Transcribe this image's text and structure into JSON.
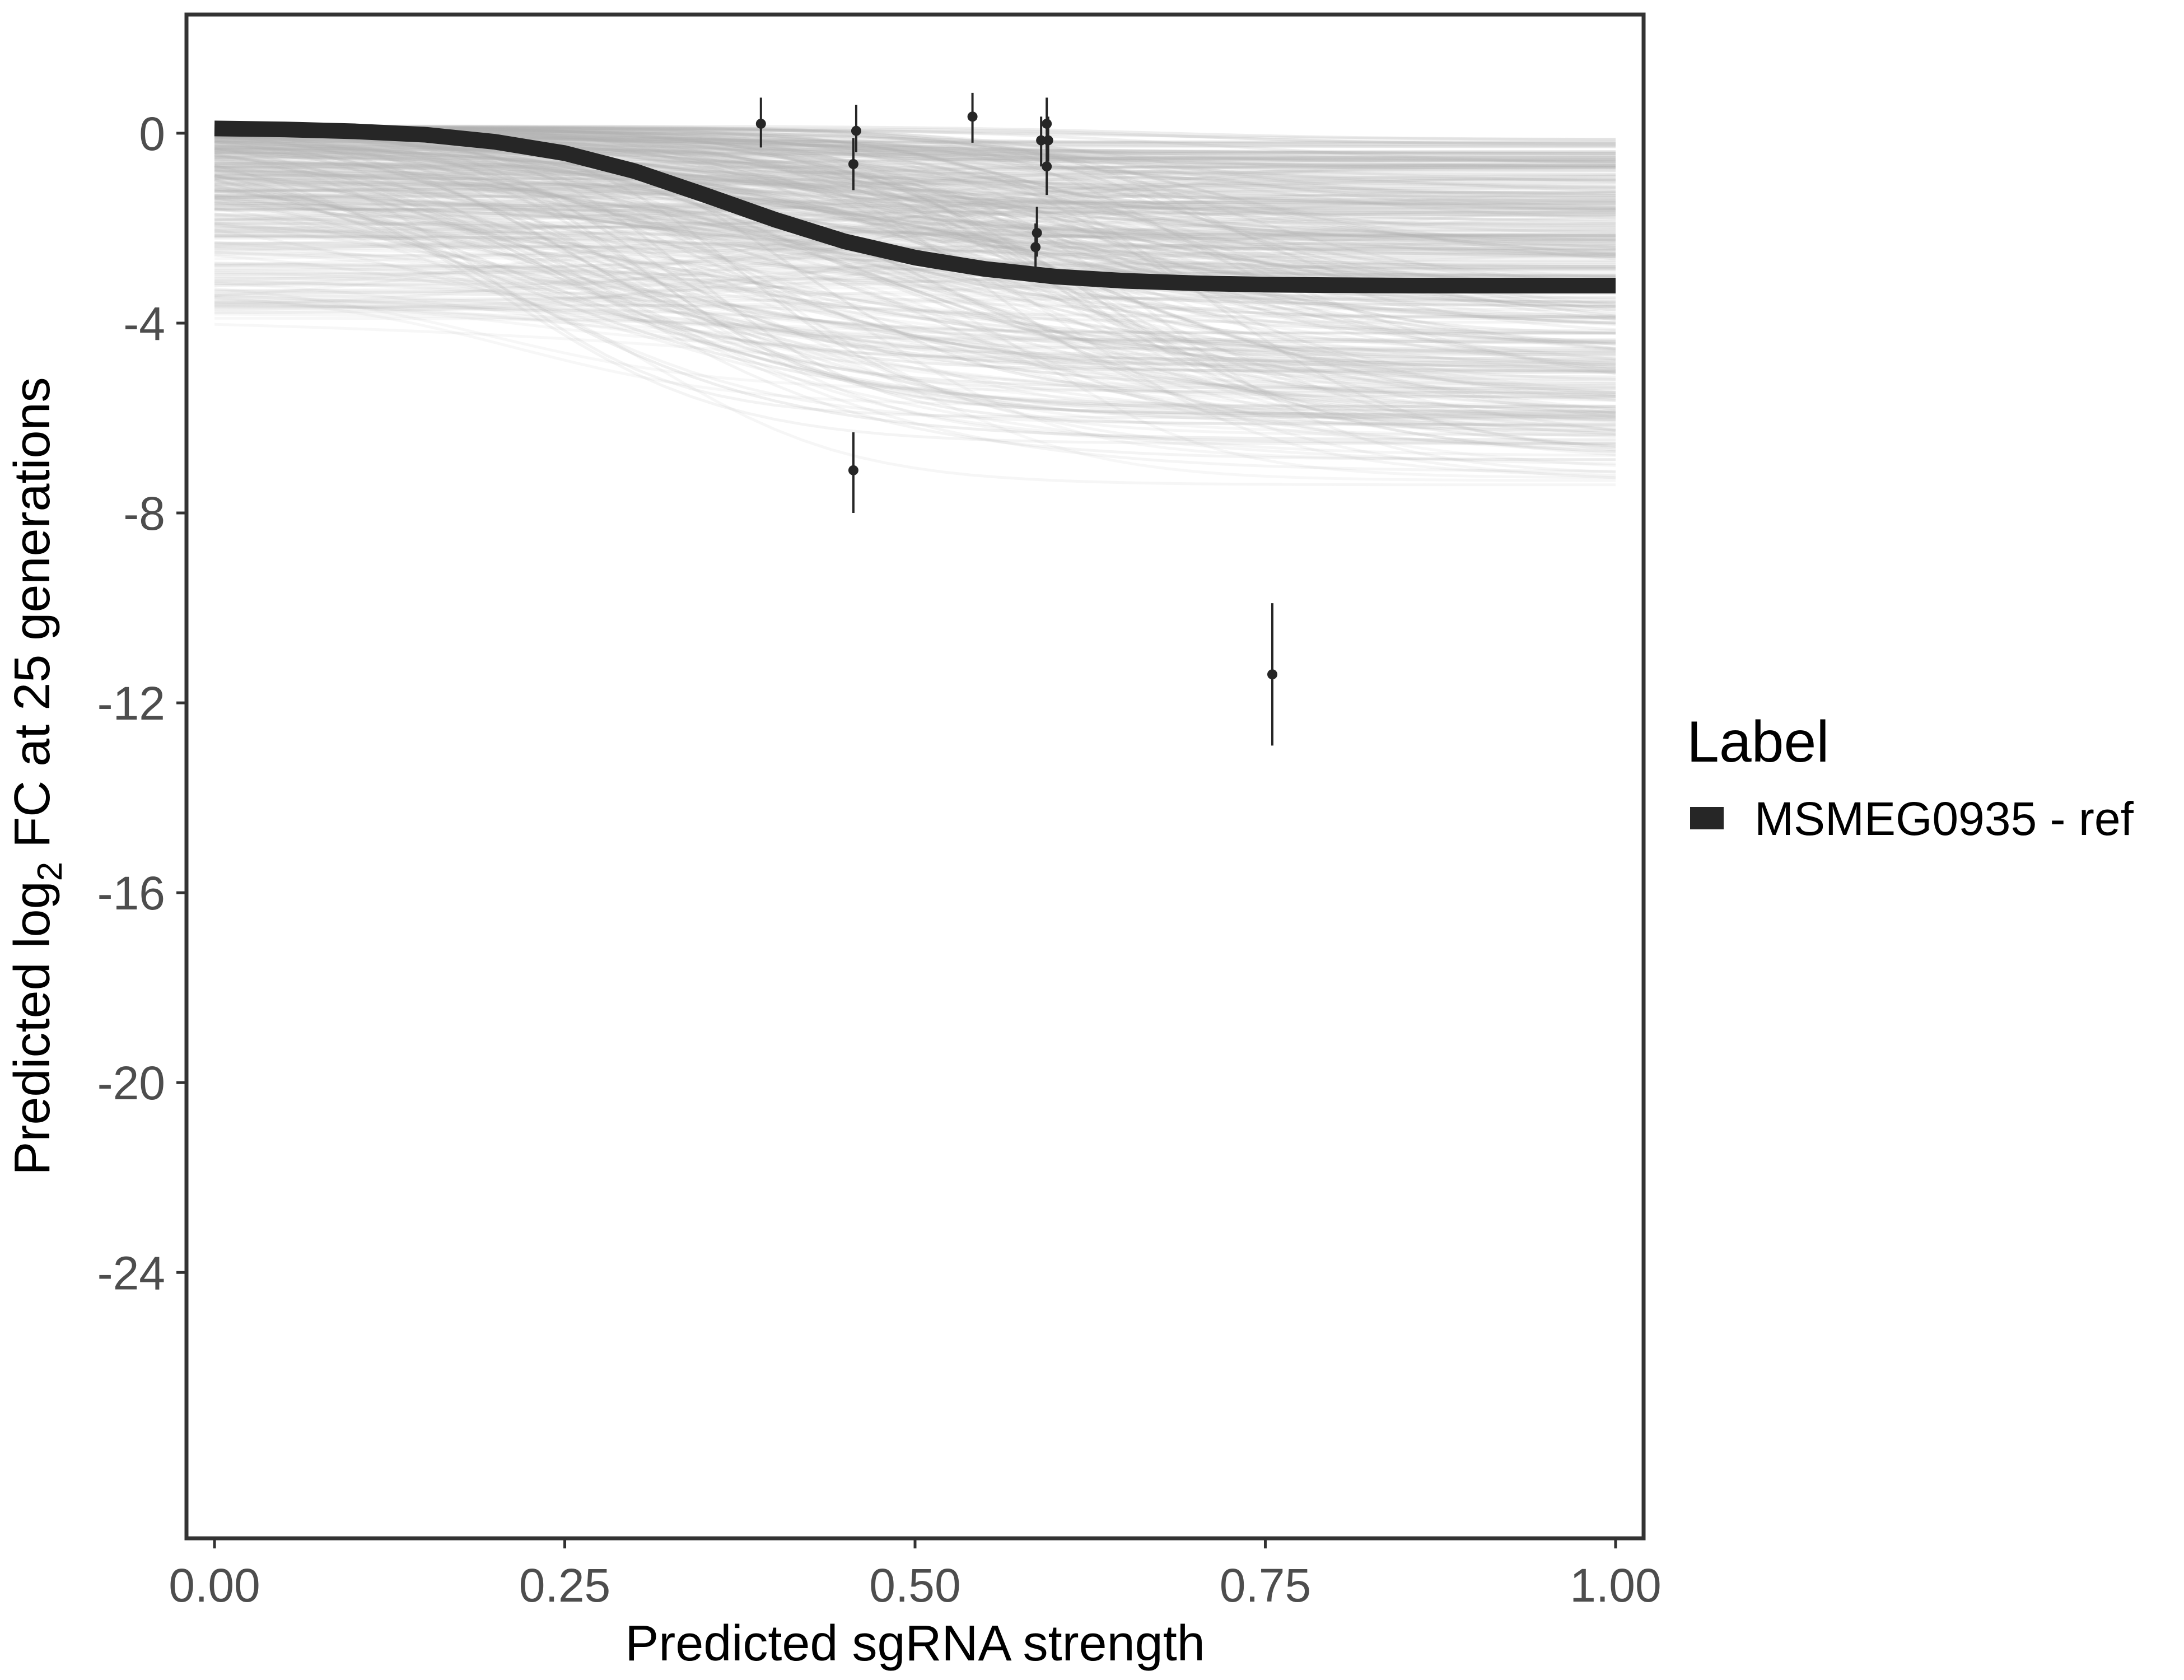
{
  "chart_data": {
    "type": "line",
    "xlabel": "Predicted sgRNA strength",
    "ylabel_prefix": "Predicted  log",
    "ylabel_subscript": "2",
    "ylabel_suffix": " FC at 25 generations",
    "xlim": [
      -0.02,
      1.02
    ],
    "ylim": [
      -29.6,
      2.5
    ],
    "x_ticks": [
      {
        "value": 0.0,
        "label": "0.00"
      },
      {
        "value": 0.25,
        "label": "0.25"
      },
      {
        "value": 0.5,
        "label": "0.50"
      },
      {
        "value": 0.75,
        "label": "0.75"
      },
      {
        "value": 1.0,
        "label": "1.00"
      }
    ],
    "y_ticks": [
      {
        "value": 0,
        "label": "0"
      },
      {
        "value": -4,
        "label": "-4"
      },
      {
        "value": -8,
        "label": "-8"
      },
      {
        "value": -12,
        "label": "-12"
      },
      {
        "value": -16,
        "label": "-16"
      },
      {
        "value": -20,
        "label": "-20"
      },
      {
        "value": -24,
        "label": "-24"
      }
    ],
    "grid": false,
    "legend": {
      "title": "Label",
      "position": "right",
      "entries": [
        {
          "name": "MSMEG0935 - ref",
          "color": "#262626"
        }
      ]
    },
    "main_curve": {
      "name": "MSMEG0935 - ref",
      "color": "#262626",
      "x": [
        0.0,
        0.05,
        0.1,
        0.15,
        0.2,
        0.25,
        0.3,
        0.35,
        0.4,
        0.45,
        0.5,
        0.55,
        0.6,
        0.65,
        0.7,
        0.75,
        0.8,
        0.85,
        0.9,
        0.95,
        1.0
      ],
      "y": [
        0.1,
        0.08,
        0.04,
        -0.03,
        -0.18,
        -0.42,
        -0.8,
        -1.3,
        -1.82,
        -2.28,
        -2.62,
        -2.86,
        -3.02,
        -3.11,
        -3.16,
        -3.19,
        -3.2,
        -3.21,
        -3.21,
        -3.21,
        -3.21
      ]
    },
    "posterior_draws_color": "#b3b3b3",
    "observations": [
      {
        "x": 0.39,
        "y": 0.2,
        "ymin": -0.3,
        "ymax": 0.75
      },
      {
        "x": 0.458,
        "y": 0.05,
        "ymin": -0.4,
        "ymax": 0.6
      },
      {
        "x": 0.456,
        "y": -0.65,
        "ymin": -1.2,
        "ymax": -0.1
      },
      {
        "x": 0.456,
        "y": -7.1,
        "ymin": -8.0,
        "ymax": -6.3
      },
      {
        "x": 0.541,
        "y": 0.35,
        "ymin": -0.2,
        "ymax": 0.85
      },
      {
        "x": 0.59,
        "y": -0.15,
        "ymin": -0.7,
        "ymax": 0.35
      },
      {
        "x": 0.594,
        "y": 0.2,
        "ymin": -0.35,
        "ymax": 0.75
      },
      {
        "x": 0.595,
        "y": -0.15,
        "ymin": -0.6,
        "ymax": 0.35
      },
      {
        "x": 0.594,
        "y": -0.7,
        "ymin": -1.3,
        "ymax": -0.2
      },
      {
        "x": 0.587,
        "y": -2.1,
        "ymin": -2.6,
        "ymax": -1.55
      },
      {
        "x": 0.586,
        "y": -2.4,
        "ymin": -2.9,
        "ymax": -1.9
      },
      {
        "x": 0.755,
        "y": -11.4,
        "ymin": -12.9,
        "ymax": -9.9
      }
    ]
  }
}
